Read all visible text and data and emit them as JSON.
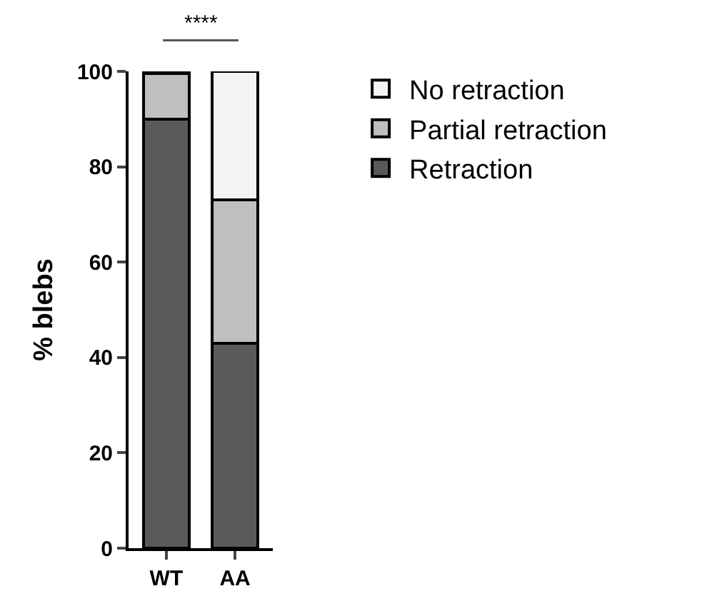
{
  "chart_data": {
    "type": "bar",
    "stacked": true,
    "ylabel": "% blebs",
    "categories": [
      "WT",
      "AA"
    ],
    "series": [
      {
        "name": "Retraction",
        "color": "#5a5a5c",
        "values": [
          90,
          43
        ]
      },
      {
        "name": "Partial retraction",
        "color": "#bfbfbf",
        "values": [
          9.5,
          30
        ]
      },
      {
        "name": "No retraction",
        "color": "#f2f3f5",
        "values": [
          0.5,
          27
        ]
      }
    ],
    "ylim": [
      0,
      100
    ],
    "yticks": [
      0,
      20,
      40,
      60,
      80,
      100
    ],
    "grid": false,
    "legend": "top right",
    "annotations": [
      "****"
    ]
  }
}
